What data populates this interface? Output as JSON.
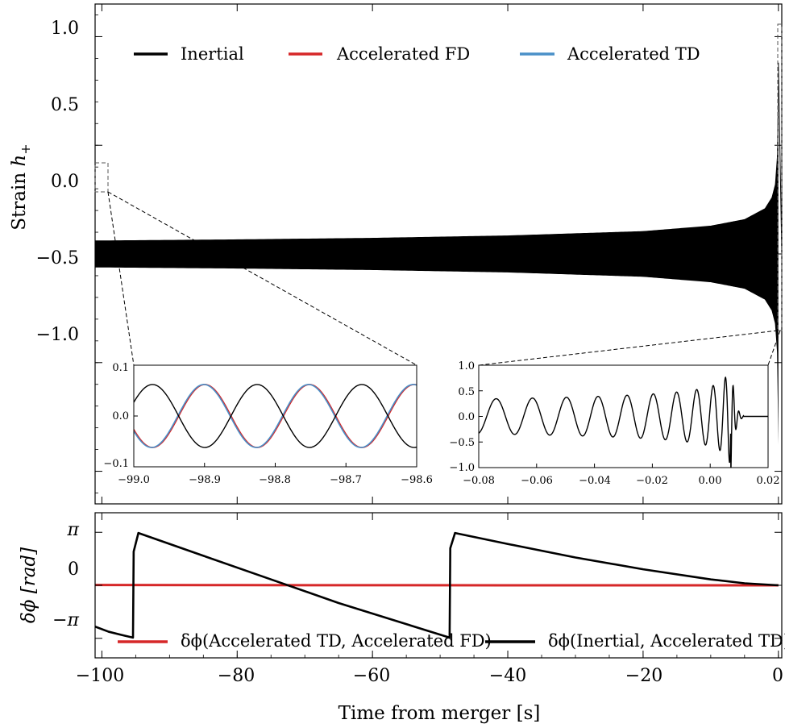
{
  "chart_data": [
    {
      "panel": "strain",
      "type": "line",
      "ylabel": "Strain h+",
      "ylabel_main": "Strain ",
      "ylabel_sym": "h",
      "ylabel_sub": "+",
      "xlim": [
        -101,
        0.5
      ],
      "ylim": [
        -1.15,
        1.15
      ],
      "yticks": [
        1.0,
        0.5,
        0.0,
        -0.5,
        -1.0
      ],
      "ytick_labels": [
        "1.0",
        "0.5",
        "0.0",
        "−0.5",
        "−1.0"
      ],
      "legend_position": "top",
      "series": [
        {
          "name": "Inertial",
          "color": "#000000"
        },
        {
          "name": "Accelerated FD",
          "color": "#d62728"
        },
        {
          "name": "Accelerated TD",
          "color": "#4a90c8"
        }
      ],
      "envelope": {
        "t": [
          -100,
          -80,
          -60,
          -40,
          -20,
          -10,
          -5,
          -2,
          -1,
          -0.5,
          -0.2,
          0
        ],
        "amplitude": [
          0.062,
          0.067,
          0.074,
          0.085,
          0.105,
          0.13,
          0.16,
          0.21,
          0.26,
          0.32,
          0.45,
          0.88
        ]
      }
    },
    {
      "panel": "inset-early",
      "type": "line",
      "xlim": [
        -99.0,
        -98.6
      ],
      "ylim": [
        -0.1,
        0.1
      ],
      "xticks": [
        -99.0,
        -98.9,
        -98.8,
        -98.7,
        -98.6
      ],
      "xtick_labels": [
        "−99.0",
        "−98.9",
        "−98.8",
        "−98.7",
        "−98.6"
      ],
      "yticks": [
        0.1,
        0.0,
        -0.1
      ],
      "ytick_labels": [
        "0.1",
        "0.0",
        "−0.1"
      ],
      "period": 0.148,
      "amplitude": 0.062,
      "inertial_phase": 0.45,
      "accelerated_phase": -2.7,
      "fd_td_offset": 0.06
    },
    {
      "panel": "inset-merger",
      "type": "line",
      "xlim": [
        -0.08,
        0.02
      ],
      "ylim": [
        -1.0,
        1.0
      ],
      "xticks": [
        -0.08,
        -0.06,
        -0.04,
        -0.02,
        0.0,
        0.02
      ],
      "xtick_labels": [
        "−0.08",
        "−0.06",
        "−0.04",
        "−0.02",
        "0.00",
        "0.02"
      ],
      "yticks": [
        1.0,
        0.5,
        0.0,
        -0.5,
        -1.0
      ],
      "ytick_labels": [
        "1.0",
        "0.5",
        "0.0",
        "−0.5",
        "−1.0"
      ],
      "merger_time": 0.0075,
      "peak_amplitude": 0.9,
      "ringdown_end": 0.0115
    },
    {
      "panel": "phase",
      "type": "line",
      "ylabel": "δϕ [rad]",
      "xlabel": "Time from merger [s]",
      "xlim": [
        -101,
        0.5
      ],
      "ylim": [
        -4.3,
        4.3
      ],
      "yticks": [
        3.14159,
        0,
        -3.14159
      ],
      "ytick_labels": [
        "π",
        "0",
        "−π"
      ],
      "xticks": [
        -100,
        -80,
        -60,
        -40,
        -20,
        0
      ],
      "xtick_labels": [
        "−100",
        "−80",
        "−60",
        "−40",
        "−20",
        "0"
      ],
      "legend_position": "bottom",
      "series": [
        {
          "name": "δϕ(Accelerated TD, Accelerated FD)",
          "color": "#d62728",
          "x": [
            -101,
            -80,
            -60,
            -40,
            -20,
            0
          ],
          "y": [
            0.02,
            0.01,
            0.005,
            0.002,
            0.001,
            0.0
          ]
        },
        {
          "name": "δϕ(Inertial, Accelerated TD)",
          "color": "#000000",
          "x": [
            -101,
            -99,
            -97,
            -95.4,
            -95.3,
            -94.6,
            -85,
            -75,
            -65,
            -55,
            -48.6,
            -48.5,
            -47.8,
            -40,
            -30,
            -20,
            -10,
            -5,
            0
          ],
          "y": [
            -2.45,
            -2.75,
            -2.95,
            -3.1,
            2.0,
            3.1,
            1.75,
            0.35,
            -1.05,
            -2.3,
            -3.1,
            2.2,
            3.1,
            2.45,
            1.65,
            0.95,
            0.35,
            0.12,
            0.0
          ]
        }
      ]
    }
  ]
}
